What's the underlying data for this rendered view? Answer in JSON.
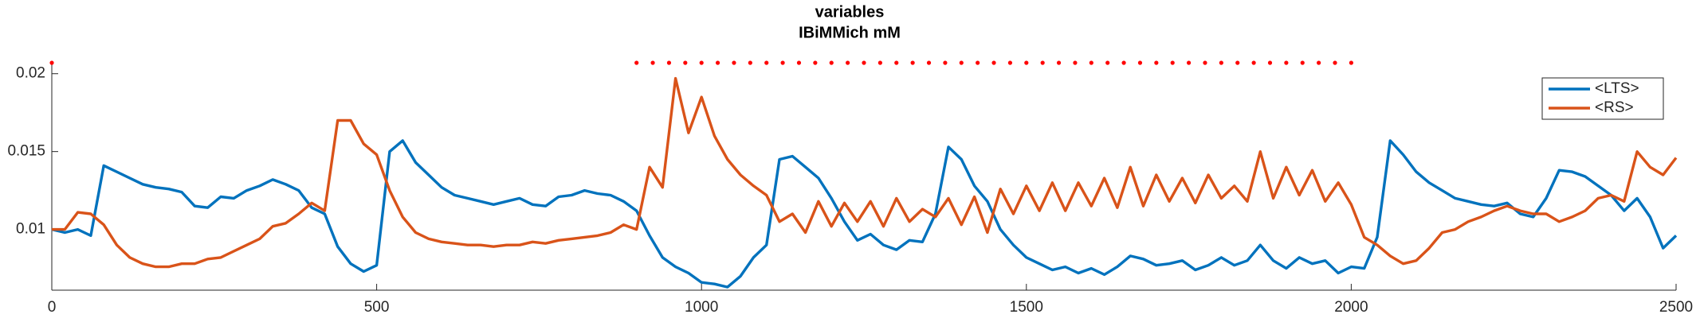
{
  "chart_data": {
    "type": "line",
    "title": [
      "variables",
      "IBiMMich mM"
    ],
    "x": [
      0,
      20,
      40,
      60,
      80,
      100,
      120,
      140,
      160,
      180,
      200,
      220,
      240,
      260,
      280,
      300,
      320,
      340,
      360,
      380,
      400,
      420,
      440,
      460,
      480,
      500,
      520,
      540,
      560,
      580,
      600,
      620,
      640,
      660,
      680,
      700,
      720,
      740,
      760,
      780,
      800,
      820,
      840,
      860,
      880,
      900,
      920,
      940,
      960,
      980,
      1000,
      1020,
      1040,
      1060,
      1080,
      1100,
      1120,
      1140,
      1160,
      1180,
      1200,
      1220,
      1240,
      1260,
      1280,
      1300,
      1320,
      1340,
      1360,
      1380,
      1400,
      1420,
      1440,
      1460,
      1480,
      1500,
      1520,
      1540,
      1560,
      1580,
      1600,
      1620,
      1640,
      1660,
      1680,
      1700,
      1720,
      1740,
      1760,
      1780,
      1800,
      1820,
      1840,
      1860,
      1880,
      1900,
      1920,
      1940,
      1960,
      1980,
      2000,
      2020,
      2040,
      2060,
      2080,
      2100,
      2120,
      2140,
      2160,
      2180,
      2200,
      2220,
      2240,
      2260,
      2280,
      2300,
      2320,
      2340,
      2360,
      2380,
      2400,
      2420,
      2440,
      2460,
      2480,
      2500
    ],
    "series": [
      {
        "name": "<LTS>",
        "color": "#0072bd",
        "values": [
          0.01,
          0.0098,
          0.01,
          0.0096,
          0.0141,
          0.0137,
          0.0133,
          0.0129,
          0.0127,
          0.0126,
          0.0124,
          0.0115,
          0.0114,
          0.0121,
          0.012,
          0.0125,
          0.0128,
          0.0132,
          0.0129,
          0.0125,
          0.0114,
          0.011,
          0.0089,
          0.0078,
          0.0073,
          0.0077,
          0.015,
          0.0157,
          0.0143,
          0.0135,
          0.0127,
          0.0122,
          0.012,
          0.0118,
          0.0116,
          0.0118,
          0.012,
          0.0116,
          0.0115,
          0.0121,
          0.0122,
          0.0125,
          0.0123,
          0.0122,
          0.0118,
          0.0112,
          0.0096,
          0.0082,
          0.0076,
          0.0072,
          0.0066,
          0.0065,
          0.0063,
          0.007,
          0.0082,
          0.009,
          0.0145,
          0.0147,
          0.014,
          0.0133,
          0.012,
          0.0105,
          0.0093,
          0.0097,
          0.009,
          0.0087,
          0.0093,
          0.0092,
          0.011,
          0.0153,
          0.0145,
          0.0128,
          0.0118,
          0.01,
          0.009,
          0.0082,
          0.0078,
          0.0074,
          0.0076,
          0.0072,
          0.0075,
          0.0071,
          0.0076,
          0.0083,
          0.0081,
          0.0077,
          0.0078,
          0.008,
          0.0074,
          0.0077,
          0.0082,
          0.0077,
          0.008,
          0.009,
          0.008,
          0.0075,
          0.0082,
          0.0078,
          0.008,
          0.0072,
          0.0076,
          0.0075,
          0.0095,
          0.0157,
          0.0148,
          0.0137,
          0.013,
          0.0125,
          0.012,
          0.0118,
          0.0116,
          0.0115,
          0.0117,
          0.011,
          0.0108,
          0.012,
          0.0138,
          0.0137,
          0.0134,
          0.0128,
          0.0122,
          0.0112,
          0.012,
          0.0108,
          0.0088,
          0.0096
        ]
      },
      {
        "name": "<RS>",
        "color": "#d95319",
        "values": [
          0.01,
          0.01,
          0.0111,
          0.011,
          0.0103,
          0.009,
          0.0082,
          0.0078,
          0.0076,
          0.0076,
          0.0078,
          0.0078,
          0.0081,
          0.0082,
          0.0086,
          0.009,
          0.0094,
          0.0102,
          0.0104,
          0.011,
          0.0117,
          0.0112,
          0.017,
          0.017,
          0.0155,
          0.0148,
          0.0125,
          0.0108,
          0.0098,
          0.0094,
          0.0092,
          0.0091,
          0.009,
          0.009,
          0.0089,
          0.009,
          0.009,
          0.0092,
          0.0091,
          0.0093,
          0.0094,
          0.0095,
          0.0096,
          0.0098,
          0.0103,
          0.01,
          0.014,
          0.0127,
          0.0197,
          0.0162,
          0.0185,
          0.016,
          0.0145,
          0.0135,
          0.0128,
          0.0122,
          0.0105,
          0.011,
          0.0098,
          0.0118,
          0.0102,
          0.0117,
          0.0105,
          0.0118,
          0.0102,
          0.012,
          0.0105,
          0.0113,
          0.0108,
          0.012,
          0.0103,
          0.0121,
          0.0098,
          0.0126,
          0.011,
          0.0128,
          0.0112,
          0.013,
          0.0112,
          0.013,
          0.0115,
          0.0133,
          0.0114,
          0.014,
          0.0115,
          0.0135,
          0.0118,
          0.0133,
          0.0117,
          0.0135,
          0.012,
          0.0128,
          0.0118,
          0.015,
          0.012,
          0.014,
          0.0122,
          0.0138,
          0.0118,
          0.013,
          0.0116,
          0.0095,
          0.009,
          0.0083,
          0.0078,
          0.008,
          0.0088,
          0.0098,
          0.01,
          0.0105,
          0.0108,
          0.0112,
          0.0115,
          0.0112,
          0.011,
          0.011,
          0.0105,
          0.0108,
          0.0112,
          0.012,
          0.0122,
          0.0118,
          0.015,
          0.014,
          0.0135,
          0.0146
        ]
      }
    ],
    "markers": {
      "color": "#ff0000",
      "x": [
        0,
        900,
        925,
        950,
        975,
        1000,
        1025,
        1050,
        1075,
        1100,
        1125,
        1150,
        1175,
        1200,
        1225,
        1250,
        1275,
        1300,
        1325,
        1350,
        1375,
        1400,
        1425,
        1450,
        1475,
        1500,
        1525,
        1550,
        1575,
        1600,
        1625,
        1650,
        1675,
        1700,
        1725,
        1750,
        1775,
        1800,
        1825,
        1850,
        1875,
        1900,
        1925,
        1950,
        1975,
        2000
      ],
      "values": [
        0.0207,
        0.0207,
        0.0207,
        0.0207,
        0.0207,
        0.0207,
        0.0207,
        0.0207,
        0.0207,
        0.0207,
        0.0207,
        0.0207,
        0.0207,
        0.0207,
        0.0207,
        0.0207,
        0.0207,
        0.0207,
        0.0207,
        0.0207,
        0.0207,
        0.0207,
        0.0207,
        0.0207,
        0.0207,
        0.0207,
        0.0207,
        0.0207,
        0.0207,
        0.0207,
        0.0207,
        0.0207,
        0.0207,
        0.0207,
        0.0207,
        0.0207,
        0.0207,
        0.0207,
        0.0207,
        0.0207,
        0.0207,
        0.0207,
        0.0207,
        0.0207,
        0.0207,
        0.0207
      ]
    },
    "xlim": [
      0,
      2500
    ],
    "xticks": [
      0,
      500,
      1000,
      1500,
      2000,
      2500
    ],
    "ylim": [
      0.0061,
      0.0207
    ],
    "yticks": [
      0.01,
      0.015,
      0.02
    ],
    "grid": false,
    "legend": "upper right"
  }
}
